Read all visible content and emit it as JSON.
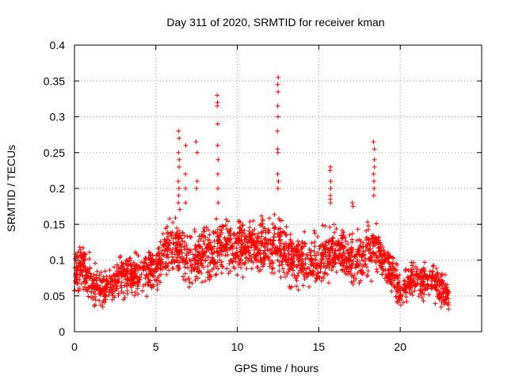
{
  "chart_data": {
    "type": "scatter",
    "title": "Day 311 of 2020, SRMTID for receiver kman",
    "xlabel": "GPS time / hours",
    "ylabel": "SRMTID / TECUs",
    "xlim": [
      0,
      25
    ],
    "ylim": [
      0,
      0.4
    ],
    "xticks": [
      0,
      5,
      10,
      15,
      20
    ],
    "xtick_labels": [
      "0",
      "5",
      "10",
      "15",
      "20"
    ],
    "yticks": [
      0,
      0.05,
      0.1,
      0.15,
      0.2,
      0.25,
      0.3,
      0.35,
      0.4
    ],
    "ytick_labels": [
      "0",
      "0.05",
      "0.1",
      "0.15",
      "0.2",
      "0.25",
      "0.3",
      "0.35",
      "0.4"
    ],
    "grid": true,
    "marker": "+",
    "color": "#ff0000",
    "series": [
      {
        "name": "SRMTID",
        "envelope": {
          "x": [
            0,
            0.5,
            1,
            1.5,
            2,
            2.5,
            3,
            3.5,
            4,
            4.5,
            5,
            5.5,
            6,
            6.5,
            7,
            7.5,
            8,
            8.5,
            9,
            9.5,
            10,
            10.5,
            11,
            11.5,
            12,
            12.5,
            13,
            13.5,
            14,
            14.5,
            15,
            15.5,
            16,
            16.5,
            17,
            17.5,
            18,
            18.5,
            19,
            19.5,
            20,
            20.5,
            21,
            21.5,
            22,
            22.5,
            23
          ],
          "center": [
            0.08,
            0.09,
            0.07,
            0.06,
            0.06,
            0.07,
            0.08,
            0.08,
            0.08,
            0.08,
            0.09,
            0.11,
            0.12,
            0.12,
            0.1,
            0.1,
            0.11,
            0.11,
            0.12,
            0.12,
            0.12,
            0.12,
            0.12,
            0.12,
            0.12,
            0.12,
            0.11,
            0.1,
            0.1,
            0.1,
            0.1,
            0.11,
            0.11,
            0.11,
            0.1,
            0.1,
            0.11,
            0.11,
            0.1,
            0.08,
            0.06,
            0.07,
            0.07,
            0.07,
            0.07,
            0.06,
            0.05
          ],
          "spread": [
            0.03,
            0.03,
            0.03,
            0.025,
            0.025,
            0.025,
            0.03,
            0.03,
            0.03,
            0.03,
            0.03,
            0.035,
            0.04,
            0.04,
            0.035,
            0.035,
            0.035,
            0.04,
            0.04,
            0.04,
            0.035,
            0.035,
            0.035,
            0.035,
            0.035,
            0.04,
            0.035,
            0.035,
            0.035,
            0.035,
            0.035,
            0.035,
            0.035,
            0.035,
            0.035,
            0.035,
            0.035,
            0.035,
            0.03,
            0.03,
            0.025,
            0.025,
            0.025,
            0.025,
            0.025,
            0.025,
            0.02
          ]
        },
        "peaks": [
          {
            "x": 6.4,
            "values": [
              0.28,
              0.27,
              0.25,
              0.24,
              0.23,
              0.21,
              0.2,
              0.19,
              0.18
            ]
          },
          {
            "x": 6.8,
            "values": [
              0.26,
              0.22,
              0.2,
              0.18
            ]
          },
          {
            "x": 7.5,
            "values": [
              0.265,
              0.25,
              0.21,
              0.2
            ]
          },
          {
            "x": 8.8,
            "values": [
              0.33,
              0.32,
              0.315,
              0.29,
              0.26,
              0.24,
              0.22,
              0.2,
              0.18
            ]
          },
          {
            "x": 12.5,
            "values": [
              0.355,
              0.345,
              0.335,
              0.315,
              0.3,
              0.28,
              0.255,
              0.25,
              0.22,
              0.21,
              0.2
            ]
          },
          {
            "x": 15.7,
            "values": [
              0.23,
              0.225,
              0.21,
              0.2,
              0.19,
              0.185,
              0.18
            ]
          },
          {
            "x": 18.4,
            "values": [
              0.265,
              0.255,
              0.24,
              0.23,
              0.22,
              0.21,
              0.2,
              0.19
            ]
          },
          {
            "x": 17.1,
            "values": [
              0.18,
              0.175
            ]
          }
        ]
      }
    ]
  }
}
